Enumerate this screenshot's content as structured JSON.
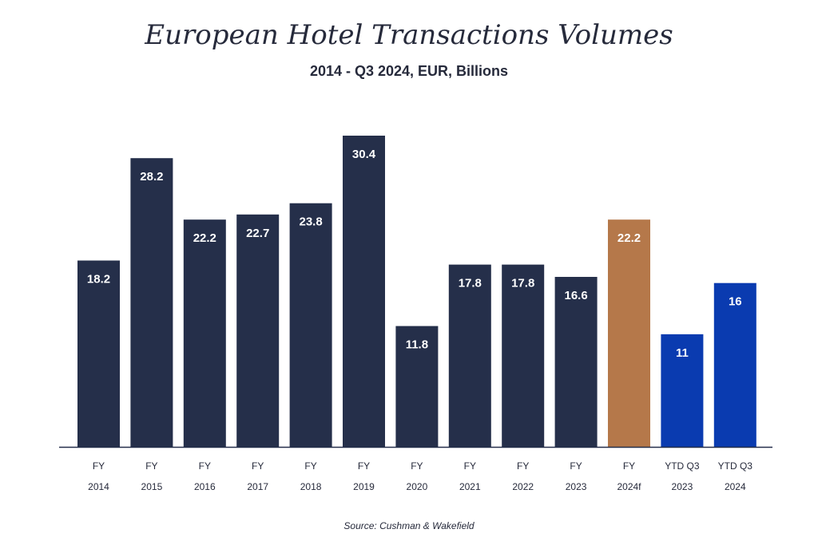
{
  "chart_data": {
    "type": "bar",
    "title": "European Hotel Transactions Volumes",
    "subtitle": "2014 - Q3 2024, EUR, Billions",
    "source": "Source: Cushman & Wakefield",
    "xlabel": "",
    "ylabel": "",
    "ylim": [
      0,
      30.4
    ],
    "grid": false,
    "legend": "none",
    "categories": [
      {
        "line1": "FY",
        "line2": "2014"
      },
      {
        "line1": "FY",
        "line2": "2015"
      },
      {
        "line1": "FY",
        "line2": "2016"
      },
      {
        "line1": "FY",
        "line2": "2017"
      },
      {
        "line1": "FY",
        "line2": "2018"
      },
      {
        "line1": "FY",
        "line2": "2019"
      },
      {
        "line1": "FY",
        "line2": "2020"
      },
      {
        "line1": "FY",
        "line2": "2021"
      },
      {
        "line1": "FY",
        "line2": "2022"
      },
      {
        "line1": "FY",
        "line2": "2023"
      },
      {
        "line1": "FY",
        "line2": "2024f"
      },
      {
        "line1": "YTD Q3",
        "line2": "2023"
      },
      {
        "line1": "YTD Q3",
        "line2": "2024"
      }
    ],
    "values": [
      18.2,
      28.2,
      22.2,
      22.7,
      23.8,
      30.4,
      11.8,
      17.8,
      17.8,
      16.6,
      22.2,
      11,
      16
    ],
    "value_labels": [
      "18.2",
      "28.2",
      "22.2",
      "22.7",
      "23.8",
      "30.4",
      "11.8",
      "17.8",
      "17.8",
      "16.6",
      "22.2",
      "11",
      "16"
    ],
    "bar_groups": [
      "actual",
      "actual",
      "actual",
      "actual",
      "actual",
      "actual",
      "actual",
      "actual",
      "actual",
      "actual",
      "forecast",
      "ytd",
      "ytd"
    ],
    "colors": {
      "actual": "#252f4a",
      "forecast": "#b5784a",
      "ytd": "#0a3bb0",
      "axis": "#252f4a",
      "text": "#262a3b",
      "label": "#ffffff"
    }
  }
}
